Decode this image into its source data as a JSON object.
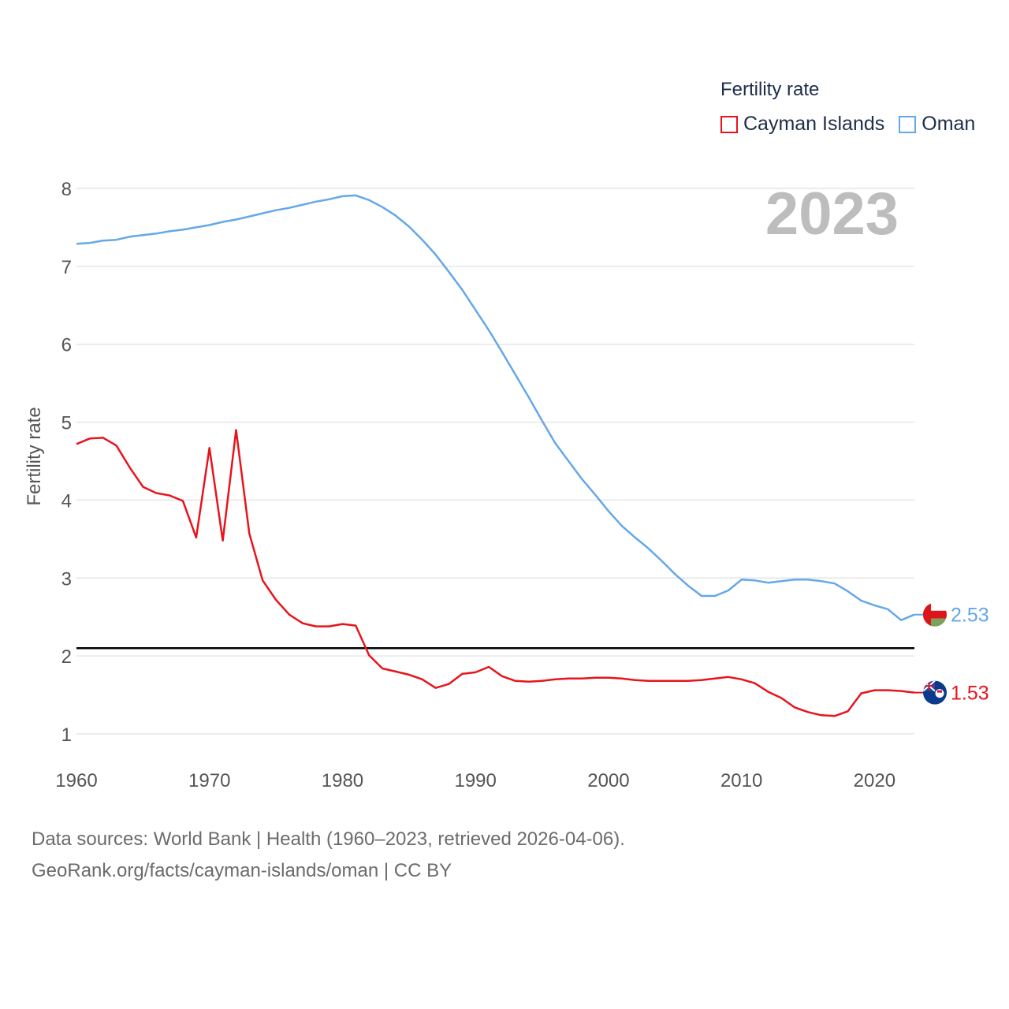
{
  "chart_data": {
    "type": "line",
    "title": "",
    "xlabel": "",
    "ylabel": "Fertility rate",
    "xlim": [
      1960,
      2023
    ],
    "ylim": [
      1,
      8
    ],
    "x_ticks": [
      1960,
      1970,
      1980,
      1990,
      2000,
      2010,
      2020
    ],
    "y_ticks": [
      1,
      2,
      3,
      4,
      5,
      6,
      7,
      8
    ],
    "x": [
      1960,
      1961,
      1962,
      1963,
      1964,
      1965,
      1966,
      1967,
      1968,
      1969,
      1970,
      1971,
      1972,
      1973,
      1974,
      1975,
      1976,
      1977,
      1978,
      1979,
      1980,
      1981,
      1982,
      1983,
      1984,
      1985,
      1986,
      1987,
      1988,
      1989,
      1990,
      1991,
      1992,
      1993,
      1994,
      1995,
      1996,
      1997,
      1998,
      1999,
      2000,
      2001,
      2002,
      2003,
      2004,
      2005,
      2006,
      2007,
      2008,
      2009,
      2010,
      2011,
      2012,
      2013,
      2014,
      2015,
      2016,
      2017,
      2018,
      2019,
      2020,
      2021,
      2022,
      2023
    ],
    "reference_line": {
      "y": 2.1,
      "color": "#000000"
    },
    "series": [
      {
        "name": "Cayman Islands",
        "color": "#e8141c",
        "end_label": "1.53",
        "flag_icon": "cayman-islands-flag-icon",
        "values": [
          4.72,
          4.79,
          4.8,
          4.7,
          4.42,
          4.17,
          4.09,
          4.06,
          3.99,
          3.52,
          4.67,
          3.48,
          4.9,
          3.57,
          2.97,
          2.72,
          2.53,
          2.42,
          2.38,
          2.38,
          2.41,
          2.39,
          2.01,
          1.84,
          1.8,
          1.76,
          1.7,
          1.59,
          1.64,
          1.77,
          1.79,
          1.86,
          1.74,
          1.68,
          1.67,
          1.68,
          1.7,
          1.71,
          1.71,
          1.72,
          1.72,
          1.71,
          1.69,
          1.68,
          1.68,
          1.68,
          1.68,
          1.69,
          1.71,
          1.73,
          1.7,
          1.65,
          1.54,
          1.46,
          1.34,
          1.28,
          1.24,
          1.23,
          1.29,
          1.52,
          1.56,
          1.56,
          1.55,
          1.53
        ]
      },
      {
        "name": "Oman",
        "color": "#64a8e8",
        "end_label": "2.53",
        "flag_icon": "oman-flag-icon",
        "values": [
          7.29,
          7.3,
          7.33,
          7.34,
          7.38,
          7.4,
          7.42,
          7.45,
          7.47,
          7.5,
          7.53,
          7.57,
          7.6,
          7.64,
          7.68,
          7.72,
          7.75,
          7.79,
          7.83,
          7.86,
          7.9,
          7.91,
          7.85,
          7.76,
          7.65,
          7.51,
          7.34,
          7.15,
          6.93,
          6.7,
          6.44,
          6.18,
          5.9,
          5.61,
          5.32,
          5.02,
          4.73,
          4.5,
          4.27,
          4.07,
          3.86,
          3.67,
          3.52,
          3.38,
          3.22,
          3.05,
          2.9,
          2.77,
          2.77,
          2.84,
          2.98,
          2.97,
          2.94,
          2.96,
          2.98,
          2.98,
          2.96,
          2.93,
          2.83,
          2.71,
          2.65,
          2.6,
          2.46,
          2.53
        ]
      }
    ]
  },
  "legend": {
    "title": "Fertility rate",
    "items": [
      {
        "label": "Cayman Islands",
        "color": "#e8141c"
      },
      {
        "label": "Oman",
        "color": "#64a8e8"
      }
    ]
  },
  "year_display": "2023",
  "source": {
    "line1": "Data sources: World Bank | Health (1960–2023, retrieved 2026-04-06).",
    "line2": "GeoRank.org/facts/cayman-islands/oman | CC BY"
  }
}
